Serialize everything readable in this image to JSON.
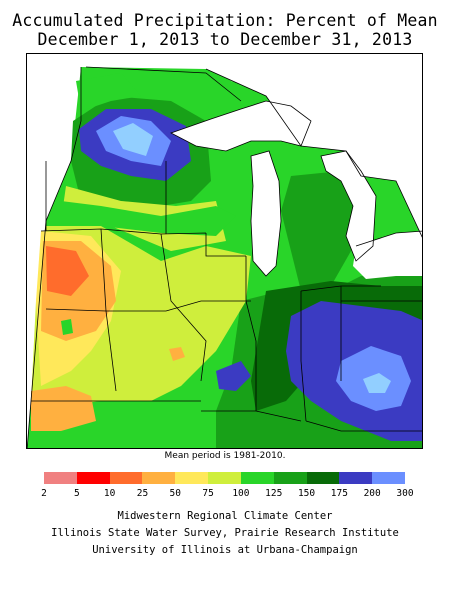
{
  "title_line1": "Accumulated Precipitation: Percent of Mean",
  "title_line2": "December 1, 2013 to December 31, 2013",
  "mean_note": "Mean period is 1981-2010.",
  "legend": {
    "ticks": [
      "2",
      "5",
      "10",
      "25",
      "50",
      "75",
      "100",
      "125",
      "150",
      "175",
      "200",
      "300"
    ],
    "colors": [
      "#f08080",
      "#ff0000",
      "#ff6c2c",
      "#ffb040",
      "#ffe85a",
      "#cfee3c",
      "#29d529",
      "#18a118",
      "#086b08",
      "#3b3bc2",
      "#6b8fff",
      "#92cfff"
    ]
  },
  "credits": [
    "Midwestern Regional Climate Center",
    "Illinois State Water Survey, Prairie Research Institute",
    "University of Illinois at Urbana-Champaign"
  ]
}
